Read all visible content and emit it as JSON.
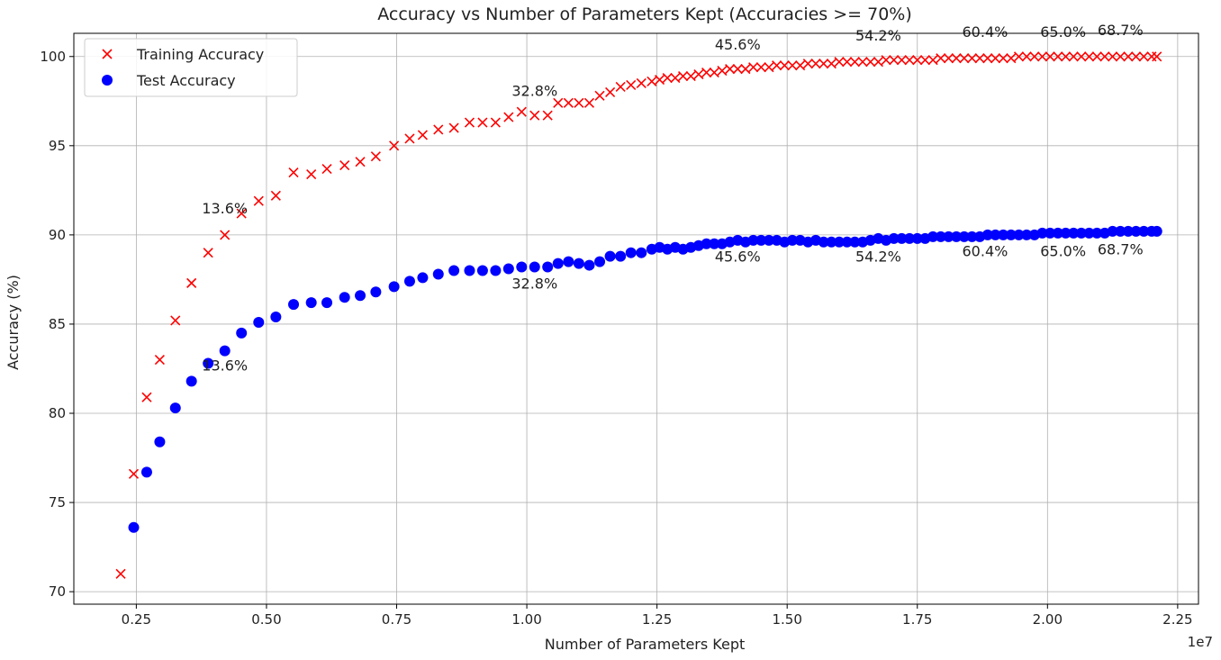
{
  "chart_data": {
    "type": "scatter",
    "title": "Accuracy vs Number of Parameters Kept (Accuracies >= 70%)",
    "xlabel": "Number of Parameters Kept",
    "ylabel": "Accuracy (%)",
    "x_offset_text": "1e7",
    "xlim": [
      1300000,
      22900000
    ],
    "ylim": [
      69.3,
      101.3
    ],
    "xticks": [
      2500000,
      5000000,
      7500000,
      10000000,
      12500000,
      15000000,
      17500000,
      20000000,
      22500000
    ],
    "xtick_labels": [
      "0.25",
      "0.50",
      "0.75",
      "1.00",
      "1.25",
      "1.50",
      "1.75",
      "2.00",
      "2.25"
    ],
    "yticks": [
      70,
      75,
      80,
      85,
      90,
      95,
      100
    ],
    "ytick_labels": [
      "70",
      "75",
      "80",
      "85",
      "90",
      "95",
      "100"
    ],
    "grid": true,
    "legend_position": "top-left",
    "colors": {
      "training": "#ff0000",
      "test": "#0000ff"
    },
    "series": [
      {
        "name": "Training Accuracy",
        "marker": "x",
        "points": [
          [
            2200000,
            71.0
          ],
          [
            2450000,
            76.6
          ],
          [
            2700000,
            80.9
          ],
          [
            2950000,
            83.0
          ],
          [
            3250000,
            85.2
          ],
          [
            3560000,
            87.3
          ],
          [
            3880000,
            89.0
          ],
          [
            4200000,
            90.0
          ],
          [
            4520000,
            91.2
          ],
          [
            4850000,
            91.9
          ],
          [
            5180000,
            92.2
          ],
          [
            5520000,
            93.5
          ],
          [
            5860000,
            93.4
          ],
          [
            6160000,
            93.7
          ],
          [
            6500000,
            93.9
          ],
          [
            6800000,
            94.1
          ],
          [
            7100000,
            94.4
          ],
          [
            7450000,
            95.0
          ],
          [
            7750000,
            95.4
          ],
          [
            8000000,
            95.6
          ],
          [
            8300000,
            95.9
          ],
          [
            8600000,
            96.0
          ],
          [
            8900000,
            96.3
          ],
          [
            9150000,
            96.3
          ],
          [
            9400000,
            96.3
          ],
          [
            9650000,
            96.6
          ],
          [
            9900000,
            96.9
          ],
          [
            10150000,
            96.7
          ],
          [
            10400000,
            96.7
          ],
          [
            10600000,
            97.4
          ],
          [
            10800000,
            97.4
          ],
          [
            11000000,
            97.4
          ],
          [
            11200000,
            97.4
          ],
          [
            11400000,
            97.8
          ],
          [
            11600000,
            98.0
          ],
          [
            11800000,
            98.3
          ],
          [
            12000000,
            98.4
          ],
          [
            12200000,
            98.5
          ],
          [
            12400000,
            98.6
          ],
          [
            12550000,
            98.7
          ],
          [
            12700000,
            98.8
          ],
          [
            12850000,
            98.8
          ],
          [
            13000000,
            98.9
          ],
          [
            13150000,
            98.9
          ],
          [
            13300000,
            99.0
          ],
          [
            13450000,
            99.1
          ],
          [
            13600000,
            99.1
          ],
          [
            13750000,
            99.2
          ],
          [
            13900000,
            99.3
          ],
          [
            14050000,
            99.3
          ],
          [
            14200000,
            99.3
          ],
          [
            14350000,
            99.4
          ],
          [
            14500000,
            99.4
          ],
          [
            14650000,
            99.4
          ],
          [
            14800000,
            99.5
          ],
          [
            14950000,
            99.5
          ],
          [
            15100000,
            99.5
          ],
          [
            15250000,
            99.5
          ],
          [
            15400000,
            99.6
          ],
          [
            15550000,
            99.6
          ],
          [
            15700000,
            99.6
          ],
          [
            15850000,
            99.6
          ],
          [
            16000000,
            99.7
          ],
          [
            16150000,
            99.7
          ],
          [
            16300000,
            99.7
          ],
          [
            16450000,
            99.7
          ],
          [
            16600000,
            99.7
          ],
          [
            16750000,
            99.7
          ],
          [
            16900000,
            99.8
          ],
          [
            17050000,
            99.8
          ],
          [
            17200000,
            99.8
          ],
          [
            17350000,
            99.8
          ],
          [
            17500000,
            99.8
          ],
          [
            17650000,
            99.8
          ],
          [
            17800000,
            99.8
          ],
          [
            17950000,
            99.9
          ],
          [
            18100000,
            99.9
          ],
          [
            18250000,
            99.9
          ],
          [
            18400000,
            99.9
          ],
          [
            18550000,
            99.9
          ],
          [
            18700000,
            99.9
          ],
          [
            18850000,
            99.9
          ],
          [
            19000000,
            99.9
          ],
          [
            19150000,
            99.9
          ],
          [
            19300000,
            99.9
          ],
          [
            19450000,
            100.0
          ],
          [
            19600000,
            100.0
          ],
          [
            19750000,
            100.0
          ],
          [
            19900000,
            100.0
          ],
          [
            20050000,
            100.0
          ],
          [
            20200000,
            100.0
          ],
          [
            20350000,
            100.0
          ],
          [
            20500000,
            100.0
          ],
          [
            20650000,
            100.0
          ],
          [
            20800000,
            100.0
          ],
          [
            20950000,
            100.0
          ],
          [
            21100000,
            100.0
          ],
          [
            21250000,
            100.0
          ],
          [
            21400000,
            100.0
          ],
          [
            21550000,
            100.0
          ],
          [
            21700000,
            100.0
          ],
          [
            21850000,
            100.0
          ],
          [
            22000000,
            100.0
          ],
          [
            22100000,
            100.0
          ]
        ]
      },
      {
        "name": "Test Accuracy",
        "marker": "o",
        "points": [
          [
            2450000,
            73.6
          ],
          [
            2700000,
            76.7
          ],
          [
            2950000,
            78.4
          ],
          [
            3250000,
            80.3
          ],
          [
            3560000,
            81.8
          ],
          [
            3880000,
            82.8
          ],
          [
            4200000,
            83.5
          ],
          [
            4520000,
            84.5
          ],
          [
            4850000,
            85.1
          ],
          [
            5180000,
            85.4
          ],
          [
            5520000,
            86.1
          ],
          [
            5860000,
            86.2
          ],
          [
            6160000,
            86.2
          ],
          [
            6500000,
            86.5
          ],
          [
            6800000,
            86.6
          ],
          [
            7100000,
            86.8
          ],
          [
            7450000,
            87.1
          ],
          [
            7750000,
            87.4
          ],
          [
            8000000,
            87.6
          ],
          [
            8300000,
            87.8
          ],
          [
            8600000,
            88.0
          ],
          [
            8900000,
            88.0
          ],
          [
            9150000,
            88.0
          ],
          [
            9400000,
            88.0
          ],
          [
            9650000,
            88.1
          ],
          [
            9900000,
            88.2
          ],
          [
            10150000,
            88.2
          ],
          [
            10400000,
            88.2
          ],
          [
            10600000,
            88.4
          ],
          [
            10800000,
            88.5
          ],
          [
            11000000,
            88.4
          ],
          [
            11200000,
            88.3
          ],
          [
            11400000,
            88.5
          ],
          [
            11600000,
            88.8
          ],
          [
            11800000,
            88.8
          ],
          [
            12000000,
            89.0
          ],
          [
            12200000,
            89.0
          ],
          [
            12400000,
            89.2
          ],
          [
            12550000,
            89.3
          ],
          [
            12700000,
            89.2
          ],
          [
            12850000,
            89.3
          ],
          [
            13000000,
            89.2
          ],
          [
            13150000,
            89.3
          ],
          [
            13300000,
            89.4
          ],
          [
            13450000,
            89.5
          ],
          [
            13600000,
            89.5
          ],
          [
            13750000,
            89.5
          ],
          [
            13900000,
            89.6
          ],
          [
            14050000,
            89.7
          ],
          [
            14200000,
            89.6
          ],
          [
            14350000,
            89.7
          ],
          [
            14500000,
            89.7
          ],
          [
            14650000,
            89.7
          ],
          [
            14800000,
            89.7
          ],
          [
            14950000,
            89.6
          ],
          [
            15100000,
            89.7
          ],
          [
            15250000,
            89.7
          ],
          [
            15400000,
            89.6
          ],
          [
            15550000,
            89.7
          ],
          [
            15700000,
            89.6
          ],
          [
            15850000,
            89.6
          ],
          [
            16000000,
            89.6
          ],
          [
            16150000,
            89.6
          ],
          [
            16300000,
            89.6
          ],
          [
            16450000,
            89.6
          ],
          [
            16600000,
            89.7
          ],
          [
            16750000,
            89.8
          ],
          [
            16900000,
            89.7
          ],
          [
            17050000,
            89.8
          ],
          [
            17200000,
            89.8
          ],
          [
            17350000,
            89.8
          ],
          [
            17500000,
            89.8
          ],
          [
            17650000,
            89.8
          ],
          [
            17800000,
            89.9
          ],
          [
            17950000,
            89.9
          ],
          [
            18100000,
            89.9
          ],
          [
            18250000,
            89.9
          ],
          [
            18400000,
            89.9
          ],
          [
            18550000,
            89.9
          ],
          [
            18700000,
            89.9
          ],
          [
            18850000,
            90.0
          ],
          [
            19000000,
            90.0
          ],
          [
            19150000,
            90.0
          ],
          [
            19300000,
            90.0
          ],
          [
            19450000,
            90.0
          ],
          [
            19600000,
            90.0
          ],
          [
            19750000,
            90.0
          ],
          [
            19900000,
            90.1
          ],
          [
            20050000,
            90.1
          ],
          [
            20200000,
            90.1
          ],
          [
            20350000,
            90.1
          ],
          [
            20500000,
            90.1
          ],
          [
            20650000,
            90.1
          ],
          [
            20800000,
            90.1
          ],
          [
            20950000,
            90.1
          ],
          [
            21100000,
            90.1
          ],
          [
            21250000,
            90.2
          ],
          [
            21400000,
            90.2
          ],
          [
            21550000,
            90.2
          ],
          [
            21700000,
            90.2
          ],
          [
            21850000,
            90.2
          ],
          [
            22000000,
            90.2
          ],
          [
            22100000,
            90.2
          ]
        ]
      }
    ],
    "annotations": [
      {
        "text": "13.6%",
        "x": 4200000,
        "y": 91.2
      },
      {
        "text": "13.6%",
        "x": 4200000,
        "y": 82.4
      },
      {
        "text": "32.8%",
        "x": 10150000,
        "y": 97.8
      },
      {
        "text": "32.8%",
        "x": 10150000,
        "y": 87.0
      },
      {
        "text": "45.6%",
        "x": 14050000,
        "y": 100.4
      },
      {
        "text": "45.6%",
        "x": 14050000,
        "y": 88.5
      },
      {
        "text": "54.2%",
        "x": 16750000,
        "y": 100.9
      },
      {
        "text": "54.2%",
        "x": 16750000,
        "y": 88.5
      },
      {
        "text": "60.4%",
        "x": 18800000,
        "y": 101.1
      },
      {
        "text": "60.4%",
        "x": 18800000,
        "y": 88.8
      },
      {
        "text": "65.0%",
        "x": 20300000,
        "y": 101.1
      },
      {
        "text": "65.0%",
        "x": 20300000,
        "y": 88.8
      },
      {
        "text": "68.7%",
        "x": 21400000,
        "y": 101.2
      },
      {
        "text": "68.7%",
        "x": 21400000,
        "y": 88.9
      }
    ]
  }
}
